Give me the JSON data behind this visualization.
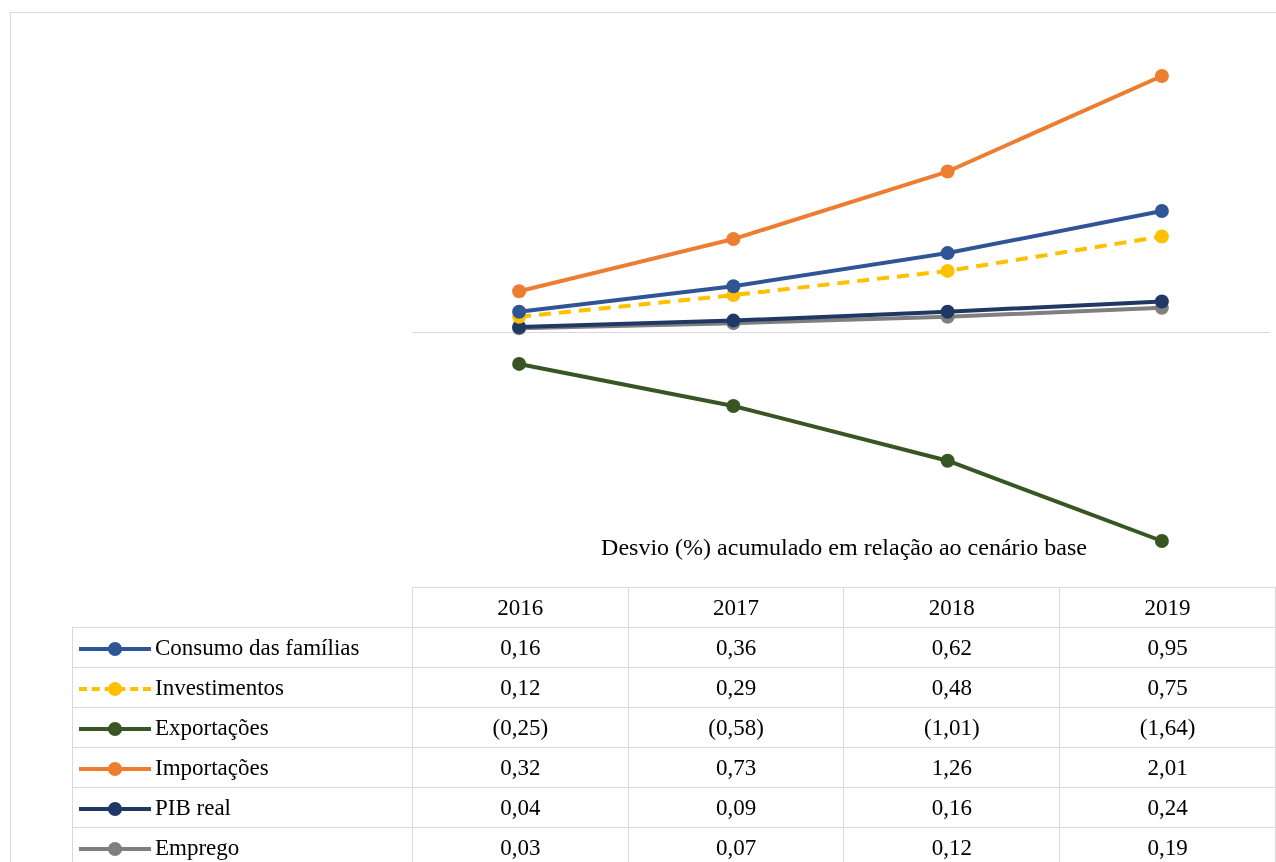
{
  "chart_data": {
    "type": "line",
    "xlabel": "Desvio (%) acumulado em relação ao cenário base",
    "categories": [
      "2016",
      "2017",
      "2018",
      "2019"
    ],
    "tick_labels": false,
    "grid": false,
    "legend": "bottom",
    "marker": "circle",
    "series": [
      {
        "name": "Consumo das famílias",
        "color": "#2f5597",
        "values": [
          0.16,
          0.36,
          0.62,
          0.95
        ],
        "value_labels": [
          "0,16",
          "0,36",
          "0,62",
          "0,95"
        ]
      },
      {
        "name": "Investimentos",
        "color": "#ffc000",
        "line_style": "dashed",
        "values": [
          0.12,
          0.29,
          0.48,
          0.75
        ],
        "value_labels": [
          "0,12",
          "0,29",
          "0,48",
          "0,75"
        ]
      },
      {
        "name": "Exportações",
        "color": "#375623",
        "values": [
          -0.25,
          -0.58,
          -1.01,
          -1.64
        ],
        "value_labels": [
          "(0,25)",
          "(0,58)",
          "(1,01)",
          "(1,64)"
        ]
      },
      {
        "name": "Importações",
        "color": "#ed7d31",
        "values": [
          0.32,
          0.73,
          1.26,
          2.01
        ],
        "value_labels": [
          "0,32",
          "0,73",
          "1,26",
          "2,01"
        ]
      },
      {
        "name": "PIB real",
        "color": "#203864",
        "values": [
          0.04,
          0.09,
          0.16,
          0.24
        ],
        "value_labels": [
          "0,04",
          "0,09",
          "0,16",
          "0,24"
        ]
      },
      {
        "name": "Emprego",
        "color": "#7f7f7f",
        "values": [
          0.03,
          0.07,
          0.12,
          0.19
        ],
        "value_labels": [
          "0,03",
          "0,07",
          "0,12",
          "0,19"
        ]
      }
    ]
  }
}
